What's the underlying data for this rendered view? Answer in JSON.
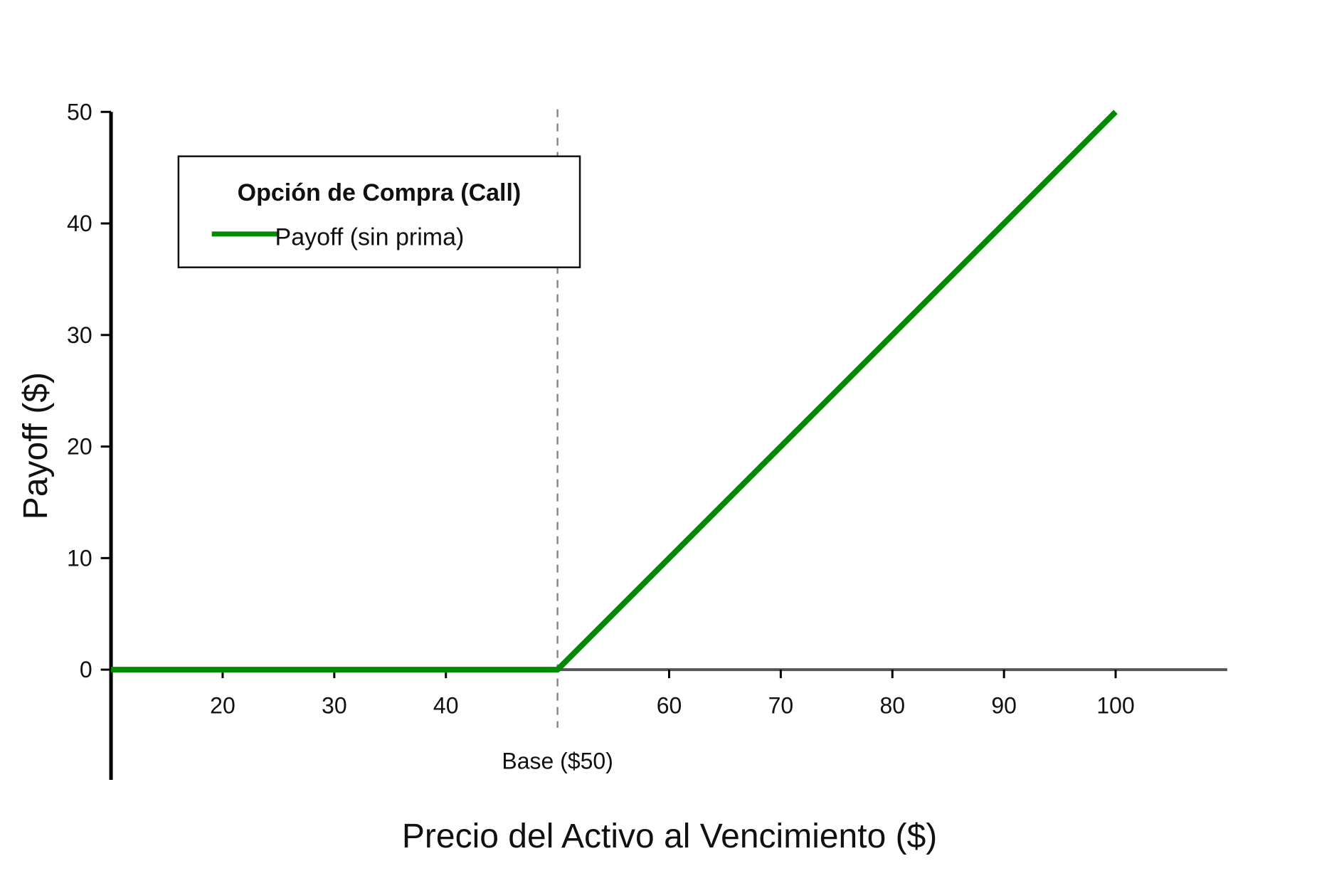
{
  "chart_data": {
    "type": "line",
    "title": "",
    "xlabel": "Precio del Activo al Vencimiento ($)",
    "ylabel": "Payoff ($)",
    "xlim": [
      10,
      110
    ],
    "ylim": [
      -10,
      50
    ],
    "x_ticks": [
      20,
      30,
      40,
      60,
      70,
      80,
      90,
      100
    ],
    "y_ticks": [
      0,
      10,
      20,
      30,
      40,
      50
    ],
    "grid": false,
    "legend": {
      "title": "Opción de Compra (Call)",
      "placement": "top-left",
      "entries": [
        "Payoff (sin prima)"
      ]
    },
    "series": [
      {
        "name": "Payoff (sin prima)",
        "color": "#008a00",
        "x": [
          10,
          50,
          100
        ],
        "y": [
          0,
          0,
          50
        ]
      }
    ],
    "reference_lines": {
      "strike": {
        "x": 50,
        "label": "Base ($50)",
        "color": "#888888"
      },
      "zero": {
        "y": 0,
        "color": "#555555"
      }
    }
  }
}
